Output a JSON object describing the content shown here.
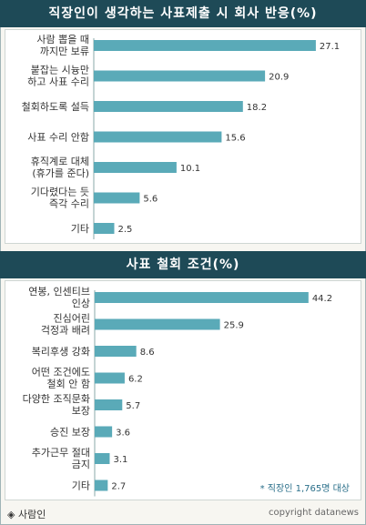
{
  "chart_data": [
    {
      "type": "bar",
      "orientation": "horizontal",
      "title": "직장인이 생각하는 사표제출 시 회사 반응(%)",
      "categories": [
        [
          "사람 뽑을 때",
          "까지만 보류"
        ],
        [
          "붙잡는 시늉만",
          "하고 사표 수리"
        ],
        [
          "철회하도록 설득"
        ],
        [
          "사표 수리 안함"
        ],
        [
          "휴직계로 대체",
          "(휴가를 준다)"
        ],
        [
          "기다렸다는 듯",
          "즉각 수리"
        ],
        [
          "기타"
        ]
      ],
      "values": [
        27.1,
        20.9,
        18.2,
        15.6,
        10.1,
        5.6,
        2.5
      ],
      "value_labels": [
        "27.1",
        "20.9",
        "18.2",
        "15.6",
        "10.1",
        "5.6",
        "2.5"
      ],
      "xlim": [
        0,
        30
      ],
      "bar_color": "#5aaab8"
    },
    {
      "type": "bar",
      "orientation": "horizontal",
      "title": "사표 철회 조건(%)",
      "categories": [
        [
          "연봉, 인센티브",
          "인상"
        ],
        [
          "진심어린",
          "걱정과 배려"
        ],
        [
          "복리후생 강화"
        ],
        [
          "어떤 조건에도",
          "철회 안 함"
        ],
        [
          "다양한 조직문화",
          "보장"
        ],
        [
          "승진 보장"
        ],
        [
          "추가근무 절대",
          "금지"
        ],
        [
          "기타"
        ]
      ],
      "values": [
        44.2,
        25.9,
        8.6,
        6.2,
        5.7,
        3.6,
        3.1,
        2.7
      ],
      "value_labels": [
        "44.2",
        "25.9",
        "8.6",
        "6.2",
        "5.7",
        "3.6",
        "3.1",
        "2.7"
      ],
      "xlim": [
        0,
        48
      ],
      "bar_color": "#5aaab8",
      "note": "* 직장인 1,765명 대상"
    }
  ],
  "footer": {
    "source": "◈ 사람인",
    "copyright": "copyright datanews"
  }
}
